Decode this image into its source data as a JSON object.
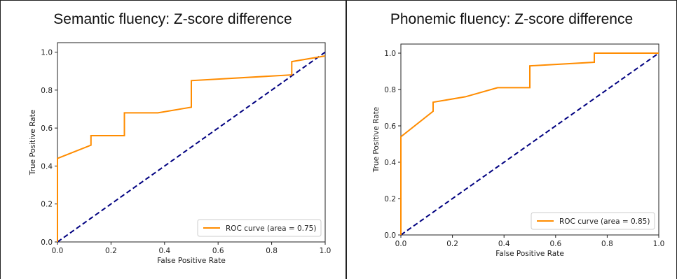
{
  "chart_data": [
    {
      "type": "line",
      "title": "Semantic fluency: Z-score difference",
      "xlabel": "False Positive Rate",
      "ylabel": "True Positive Rate",
      "xlim": [
        0.0,
        1.0
      ],
      "ylim": [
        0.0,
        1.05
      ],
      "xticks": [
        "0.0",
        "0.2",
        "0.4",
        "0.6",
        "0.8",
        "1.0"
      ],
      "yticks": [
        "0.0",
        "0.2",
        "0.4",
        "0.6",
        "0.8",
        "1.0"
      ],
      "legend_position": "lower-right",
      "series": [
        {
          "name": "ROC curve (area = 0.75)",
          "color": "#ff8c00",
          "x": [
            0.0,
            0.0,
            0.125,
            0.125,
            0.25,
            0.25,
            0.375,
            0.5,
            0.5,
            0.875,
            0.875,
            1.0
          ],
          "y": [
            0.0,
            0.44,
            0.51,
            0.56,
            0.56,
            0.68,
            0.68,
            0.71,
            0.85,
            0.88,
            0.95,
            0.98
          ]
        },
        {
          "name": "",
          "color": "#000080",
          "dashed": true,
          "x": [
            0.0,
            1.0
          ],
          "y": [
            0.0,
            1.0
          ]
        }
      ]
    },
    {
      "type": "line",
      "title": "Phonemic fluency: Z-score difference",
      "xlabel": "False Positive Rate",
      "ylabel": "True Positive Rate",
      "xlim": [
        0.0,
        1.0
      ],
      "ylim": [
        0.0,
        1.05
      ],
      "xticks": [
        "0.0",
        "0.2",
        "0.4",
        "0.6",
        "0.8",
        "1.0"
      ],
      "yticks": [
        "0.0",
        "0.2",
        "0.4",
        "0.6",
        "0.8",
        "1.0"
      ],
      "legend_position": "lower-right",
      "series": [
        {
          "name": "ROC curve (area = 0.85)",
          "color": "#ff8c00",
          "x": [
            0.0,
            0.0,
            0.125,
            0.125,
            0.25,
            0.375,
            0.5,
            0.5,
            0.75,
            0.75,
            1.0
          ],
          "y": [
            0.0,
            0.54,
            0.68,
            0.73,
            0.76,
            0.81,
            0.81,
            0.93,
            0.95,
            1.0,
            1.0
          ]
        },
        {
          "name": "",
          "color": "#000080",
          "dashed": true,
          "x": [
            0.0,
            1.0
          ],
          "y": [
            0.0,
            1.0
          ]
        }
      ]
    }
  ]
}
